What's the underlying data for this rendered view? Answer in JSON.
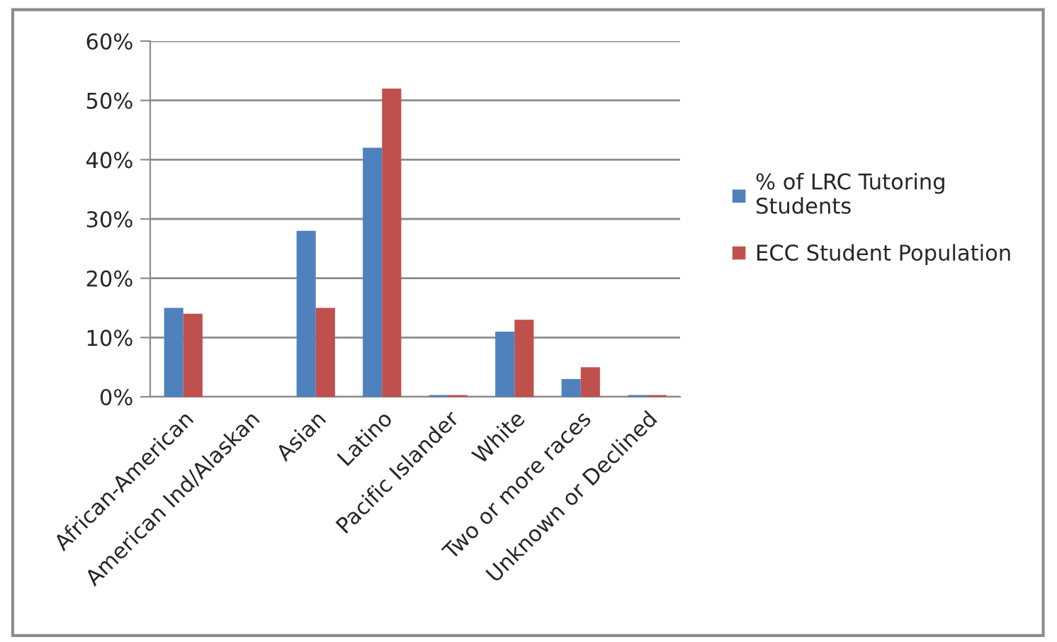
{
  "chart_data": {
    "type": "bar",
    "categories": [
      "African-American",
      "American Ind/Alaskan",
      "Asian",
      "Latino",
      "Pacific Islander",
      "White",
      "Two or more races",
      "Unknown or Declined"
    ],
    "series": [
      {
        "name": "% of LRC Tutoring\nStudents",
        "color": "#4f81bd",
        "values": [
          15,
          0,
          28,
          42,
          0.3,
          11,
          3,
          0.3
        ]
      },
      {
        "name": "ECC Student Population",
        "color": "#c0504d",
        "values": [
          14,
          0,
          15,
          52,
          0.3,
          13,
          5,
          0.3
        ]
      }
    ],
    "ylim": [
      0,
      60
    ],
    "yticks": [
      {
        "value": 0,
        "label": "0%"
      },
      {
        "value": 10,
        "label": "10%"
      },
      {
        "value": 20,
        "label": "20%"
      },
      {
        "value": 30,
        "label": "30%"
      },
      {
        "value": 40,
        "label": "40%"
      },
      {
        "value": 50,
        "label": "50%"
      },
      {
        "value": 60,
        "label": "60%"
      }
    ],
    "grid": "y",
    "legend": "right"
  }
}
